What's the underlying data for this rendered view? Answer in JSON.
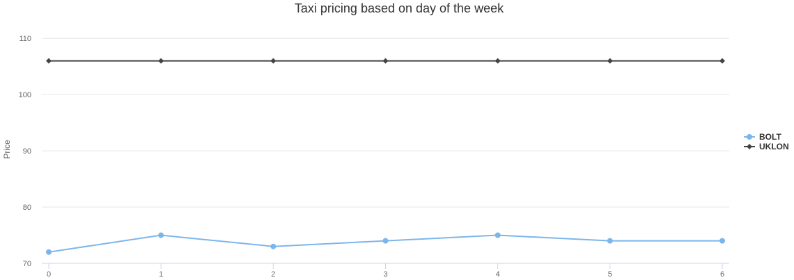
{
  "chart_data": {
    "type": "line",
    "title": "Taxi pricing based on day of the week",
    "xlabel": "",
    "ylabel": "Price",
    "x": [
      0,
      1,
      2,
      3,
      4,
      5,
      6
    ],
    "x_ticks": [
      "0",
      "1",
      "2",
      "3",
      "4",
      "5",
      "6"
    ],
    "y_ticks": [
      "70",
      "80",
      "90",
      "100",
      "110"
    ],
    "ylim": [
      70,
      112
    ],
    "xlim": [
      0,
      6
    ],
    "grid": true,
    "legend_position": "right",
    "series": [
      {
        "name": "BOLT",
        "values": [
          72,
          75,
          73,
          74,
          75,
          74,
          74
        ],
        "color": "#7cb5ec",
        "marker": "circle"
      },
      {
        "name": "UKLON",
        "values": [
          106,
          106,
          106,
          106,
          106,
          106,
          106
        ],
        "color": "#434348",
        "marker": "diamond"
      }
    ]
  }
}
